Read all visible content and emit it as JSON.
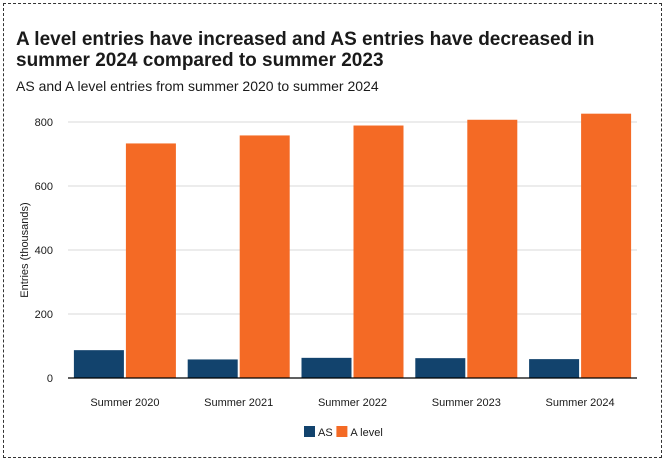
{
  "chart_data": {
    "type": "bar",
    "title": "A level entries have increased and AS entries have decreased in summer 2024 compared to summer 2023",
    "subtitle": "AS and A level entries from summer 2020 to summer 2024",
    "xlabel": "",
    "ylabel": "Entries (thousands)",
    "ylim": [
      0,
      800
    ],
    "yticks": [
      0,
      200,
      400,
      600,
      800
    ],
    "grid": true,
    "legend_position": "bottom",
    "categories": [
      "Summer 2020",
      "Summer 2021",
      "Summer 2022",
      "Summer 2023",
      "Summer 2024"
    ],
    "series": [
      {
        "name": "AS",
        "color": "#12436d",
        "values": [
          87,
          58,
          63,
          62,
          59
        ]
      },
      {
        "name": "A level",
        "color": "#f46a25",
        "values": [
          733,
          758,
          789,
          807,
          826
        ]
      }
    ]
  }
}
